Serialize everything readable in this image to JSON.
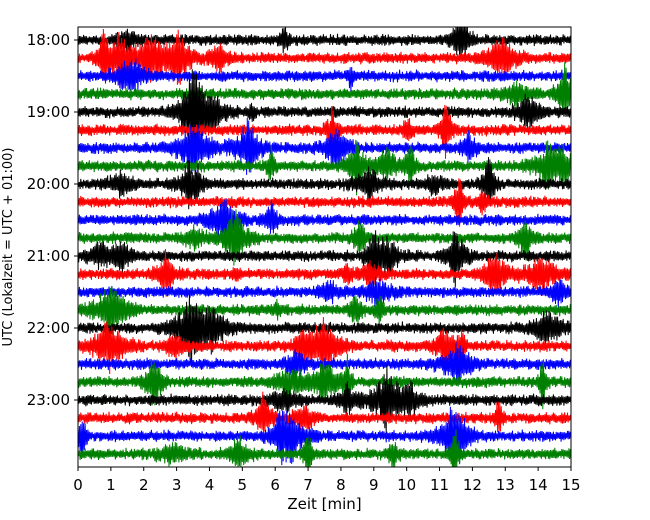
{
  "chart_data": {
    "type": "line",
    "title": "",
    "xlabel": "Zeit  [min]",
    "ylabel": "UTC (Lokalzeit = UTC + 01:00)",
    "xlim": [
      0,
      15
    ],
    "x_ticks": [
      0,
      1,
      2,
      3,
      4,
      5,
      6,
      7,
      8,
      9,
      10,
      11,
      12,
      13,
      14,
      15
    ],
    "y_tick_labels": [
      "18:00",
      "19:00",
      "20:00",
      "21:00",
      "22:00",
      "23:00"
    ],
    "trace_start_time": "18:00",
    "trace_end_time": "23:45",
    "trace_interval_min": 15,
    "trace_colors": [
      "#000000",
      "#ff0000",
      "#0000ff",
      "#008000"
    ],
    "grid": false,
    "legend": "none"
  }
}
